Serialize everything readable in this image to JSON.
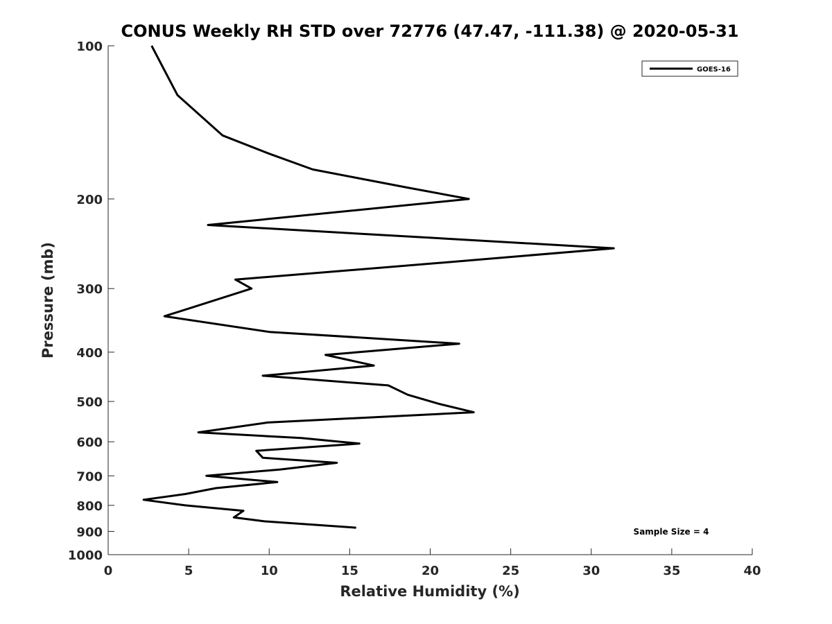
{
  "chart_data": {
    "type": "line",
    "title": "CONUS Weekly RH STD over 72776 (47.47, -111.38) @ 2020-05-31",
    "xlabel": "Relative Humidity (%)",
    "ylabel": "Pressure (mb)",
    "xlim": [
      0,
      40
    ],
    "ylim": [
      100,
      1000
    ],
    "yscale": "log",
    "yreversed": true,
    "x_ticks": [
      0,
      5,
      10,
      15,
      20,
      25,
      30,
      35,
      40
    ],
    "x_tick_labels": [
      "0",
      "5",
      "10",
      "15",
      "20",
      "25",
      "30",
      "35",
      "40"
    ],
    "y_ticks": [
      100,
      200,
      300,
      400,
      500,
      600,
      700,
      800,
      900,
      1000
    ],
    "y_tick_labels": [
      "100",
      "200",
      "300",
      "400",
      "500",
      "600",
      "700",
      "800",
      "900",
      "1000"
    ],
    "legend": {
      "entries": [
        "GOES-16"
      ],
      "location": "top-right"
    },
    "annotations": [
      {
        "text": "Sample Size = 4",
        "location": "bottom-right"
      }
    ],
    "series": [
      {
        "name": "GOES-16",
        "color": "#000000",
        "points": [
          [
            2.7,
            100
          ],
          [
            4.3,
            125
          ],
          [
            7.1,
            150
          ],
          [
            10.0,
            163
          ],
          [
            12.7,
            175
          ],
          [
            18.6,
            190
          ],
          [
            22.4,
            200
          ],
          [
            6.2,
            225
          ],
          [
            31.4,
            250
          ],
          [
            20.0,
            268
          ],
          [
            7.9,
            288
          ],
          [
            8.9,
            300
          ],
          [
            3.5,
            340
          ],
          [
            10.0,
            365
          ],
          [
            21.8,
            385
          ],
          [
            13.5,
            405
          ],
          [
            16.5,
            425
          ],
          [
            9.6,
            445
          ],
          [
            17.4,
            465
          ],
          [
            18.6,
            485
          ],
          [
            20.5,
            505
          ],
          [
            22.7,
            525
          ],
          [
            9.9,
            550
          ],
          [
            5.6,
            575
          ],
          [
            12.0,
            590
          ],
          [
            15.6,
            605
          ],
          [
            9.2,
            625
          ],
          [
            9.6,
            645
          ],
          [
            14.2,
            660
          ],
          [
            10.7,
            680
          ],
          [
            6.1,
            700
          ],
          [
            10.5,
            720
          ],
          [
            6.7,
            740
          ],
          [
            4.8,
            760
          ],
          [
            2.2,
            780
          ],
          [
            4.8,
            800
          ],
          [
            8.4,
            820
          ],
          [
            7.8,
            845
          ],
          [
            9.7,
            860
          ],
          [
            15.4,
            885
          ]
        ]
      }
    ]
  }
}
